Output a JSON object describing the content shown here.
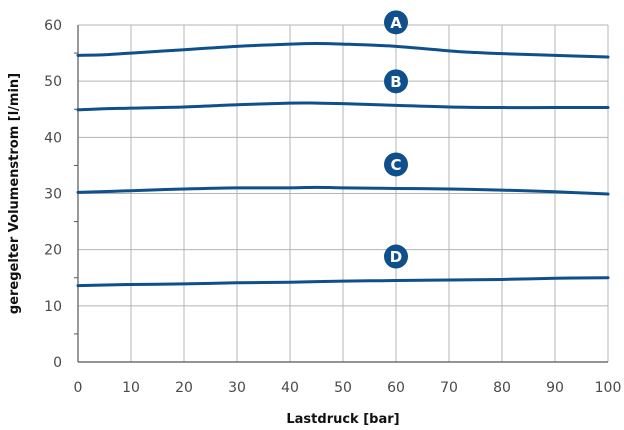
{
  "chart_data": {
    "type": "line",
    "xlabel": "Lastdruck [bar]",
    "ylabel": "geregelter Volumenstrom [l/min]",
    "xlim": [
      0,
      100
    ],
    "ylim": [
      0,
      60
    ],
    "x_ticks": [
      "0",
      "10",
      "20",
      "30",
      "40",
      "50",
      "60",
      "70",
      "80",
      "90",
      "100"
    ],
    "y_ticks": [
      "0",
      "10",
      "20",
      "30",
      "40",
      "50",
      "60"
    ],
    "grid": true,
    "colors": {
      "line": "#0f4f8c",
      "badge": "#0f4f8c",
      "grid": "#b4b4b4",
      "axis": "#555555"
    },
    "series": [
      {
        "name": "A",
        "label_at": 60,
        "x": [
          0,
          5,
          10,
          20,
          30,
          40,
          45,
          50,
          60,
          70,
          75,
          80,
          90,
          100
        ],
        "y": [
          54.6,
          54.7,
          55.0,
          55.6,
          56.2,
          56.6,
          56.7,
          56.6,
          56.2,
          55.4,
          55.1,
          54.9,
          54.6,
          54.3
        ]
      },
      {
        "name": "B",
        "label_at": 60,
        "x": [
          0,
          5,
          10,
          20,
          30,
          40,
          45,
          50,
          60,
          70,
          80,
          90,
          100
        ],
        "y": [
          44.9,
          45.1,
          45.2,
          45.4,
          45.8,
          46.1,
          46.1,
          46.0,
          45.7,
          45.4,
          45.3,
          45.3,
          45.3
        ]
      },
      {
        "name": "C",
        "label_at": 60,
        "x": [
          0,
          10,
          20,
          30,
          40,
          45,
          50,
          60,
          70,
          80,
          90,
          100
        ],
        "y": [
          30.2,
          30.5,
          30.8,
          31.0,
          31.0,
          31.1,
          31.0,
          30.9,
          30.8,
          30.6,
          30.3,
          29.9
        ]
      },
      {
        "name": "D",
        "label_at": 60,
        "x": [
          0,
          10,
          20,
          30,
          40,
          50,
          60,
          70,
          80,
          90,
          100
        ],
        "y": [
          13.6,
          13.8,
          13.9,
          14.1,
          14.2,
          14.4,
          14.5,
          14.6,
          14.7,
          14.9,
          15.0
        ]
      }
    ]
  }
}
